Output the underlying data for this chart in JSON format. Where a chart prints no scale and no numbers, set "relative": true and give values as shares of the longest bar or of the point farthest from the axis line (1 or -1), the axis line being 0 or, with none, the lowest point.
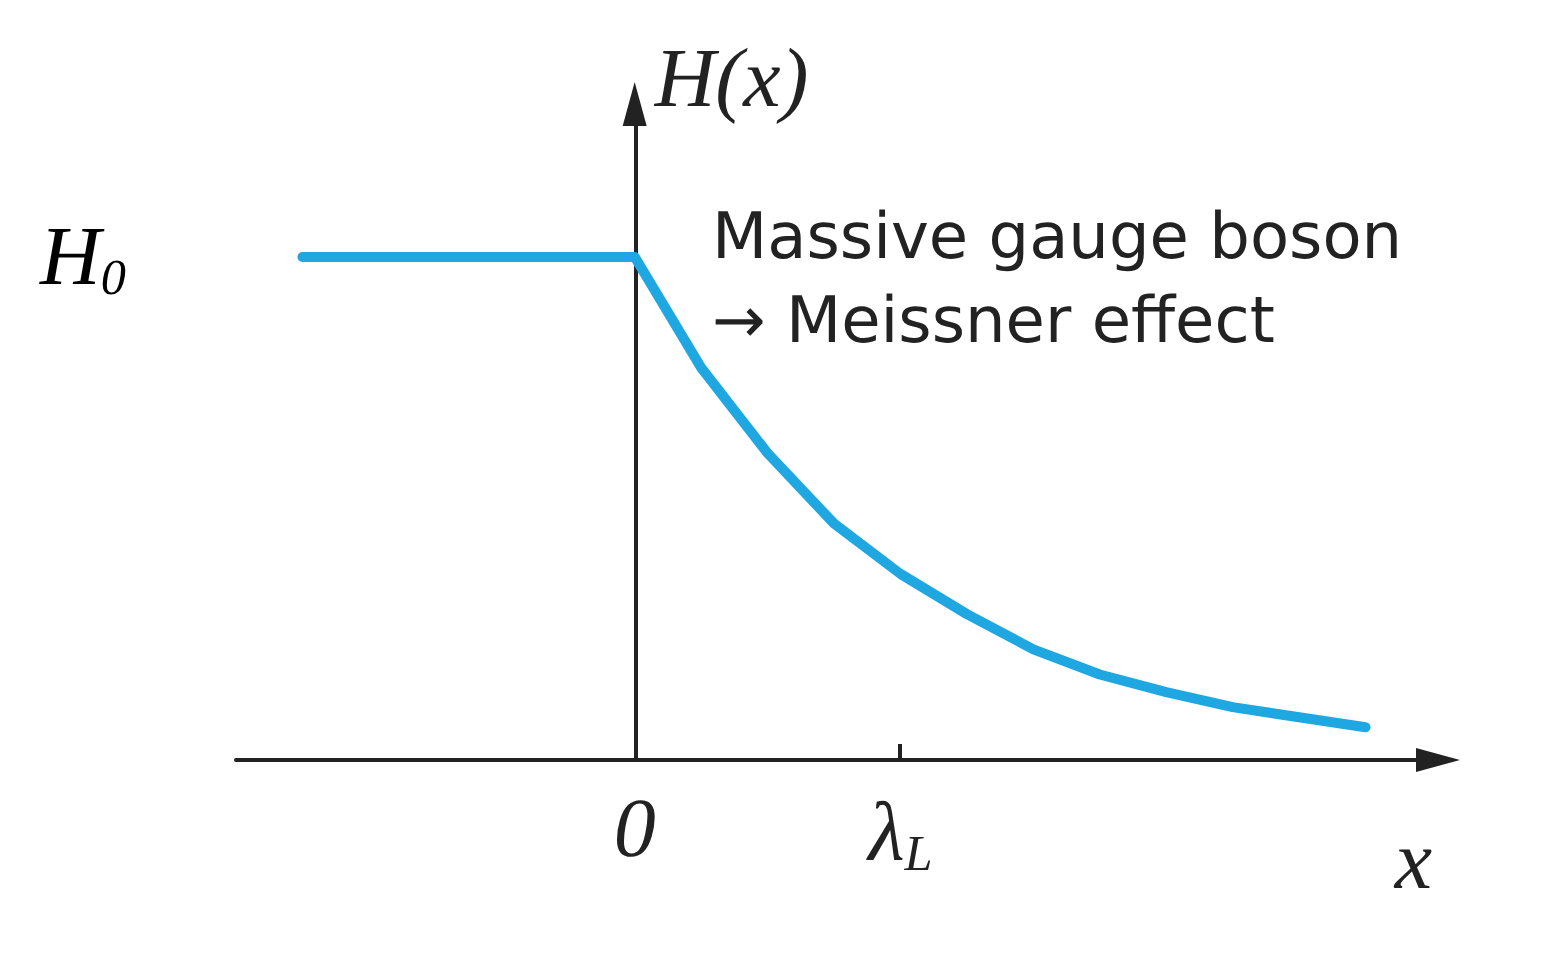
{
  "chart_data": {
    "type": "line",
    "relative": true,
    "color": "#1ea7e1",
    "xlabel": "x",
    "ylabel": "H(x)",
    "categories": [
      null,
      null,
      null,
      null,
      null,
      null,
      "0",
      null,
      null,
      null,
      "λ$_{L}$",
      null,
      null,
      null,
      null,
      null,
      null,
      null,
      null
    ],
    "values": [
      null,
      1,
      1,
      1,
      1,
      1,
      1,
      0.78,
      0.61,
      0.47,
      0.37,
      0.29,
      0.22,
      0.17,
      0.135,
      0.105,
      0.085,
      0.065,
      null
    ],
    "annotations": [
      "H$_{0}$",
      "Massive gauge boson",
      "→ Meissner effect"
    ],
    "marker": "none",
    "line_style": "solid"
  }
}
